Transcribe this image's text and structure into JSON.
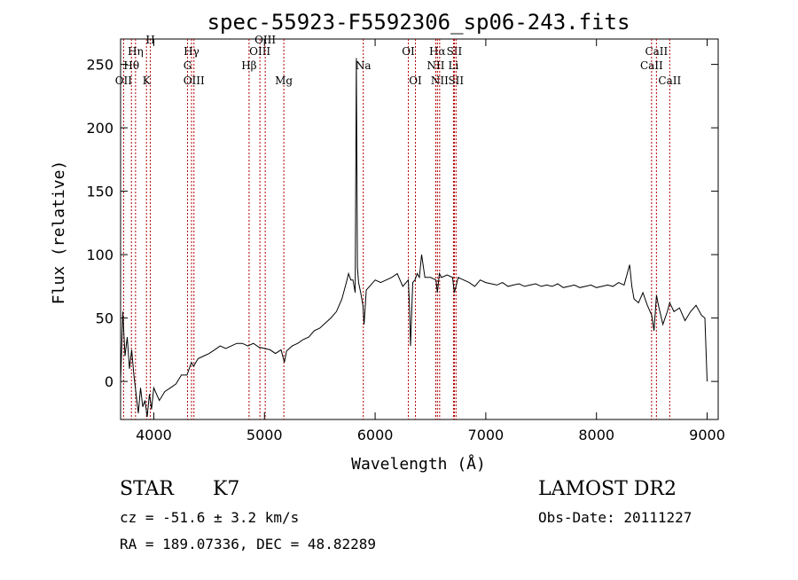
{
  "chart_data": {
    "type": "line",
    "title": "spec-55923-F5592306_sp06-243.fits",
    "xlabel": "Wavelength (Å)",
    "ylabel": "Flux (relative)",
    "xlim": [
      3700,
      9100
    ],
    "ylim": [
      -30,
      270
    ],
    "xticks": [
      4000,
      5000,
      6000,
      7000,
      8000,
      9000
    ],
    "yticks": [
      0,
      50,
      100,
      150,
      200,
      250
    ],
    "grid": false,
    "series": [
      {
        "color": "#000000",
        "x": [
          3700,
          3720,
          3740,
          3760,
          3780,
          3800,
          3820,
          3840,
          3860,
          3880,
          3900,
          3920,
          3940,
          3960,
          3980,
          4000,
          4050,
          4100,
          4150,
          4200,
          4250,
          4300,
          4340,
          4360,
          4400,
          4450,
          4500,
          4550,
          4600,
          4650,
          4700,
          4750,
          4800,
          4850,
          4900,
          4950,
          5000,
          5050,
          5100,
          5150,
          5180,
          5200,
          5250,
          5300,
          5350,
          5400,
          5450,
          5500,
          5550,
          5600,
          5650,
          5700,
          5740,
          5760,
          5780,
          5800,
          5820,
          5830,
          5840,
          5850,
          5870,
          5890,
          5900,
          5920,
          5950,
          6000,
          6050,
          6100,
          6150,
          6200,
          6250,
          6300,
          6310,
          6320,
          6340,
          6360,
          6380,
          6400,
          6420,
          6450,
          6500,
          6550,
          6563,
          6580,
          6600,
          6650,
          6700,
          6716,
          6731,
          6750,
          6800,
          6850,
          6900,
          6950,
          7000,
          7050,
          7100,
          7150,
          7200,
          7250,
          7300,
          7350,
          7400,
          7450,
          7500,
          7550,
          7600,
          7650,
          7700,
          7750,
          7800,
          7850,
          7900,
          7950,
          8000,
          8050,
          8100,
          8150,
          8200,
          8250,
          8300,
          8320,
          8340,
          8380,
          8420,
          8460,
          8500,
          8520,
          8542,
          8560,
          8600,
          8640,
          8662,
          8700,
          8750,
          8800,
          8850,
          8900,
          8950,
          8980,
          9000
        ],
        "y": [
          0,
          55,
          20,
          35,
          10,
          25,
          5,
          -10,
          -25,
          -5,
          -20,
          -15,
          -28,
          -10,
          -22,
          -5,
          -15,
          -8,
          -5,
          -2,
          5,
          5,
          15,
          12,
          18,
          20,
          22,
          25,
          28,
          26,
          28,
          30,
          30,
          28,
          30,
          27,
          26,
          25,
          22,
          25,
          15,
          24,
          28,
          30,
          33,
          35,
          40,
          42,
          46,
          50,
          55,
          65,
          78,
          85,
          80,
          80,
          70,
          255,
          90,
          78,
          70,
          60,
          45,
          72,
          75,
          80,
          78,
          80,
          82,
          85,
          75,
          80,
          60,
          28,
          78,
          80,
          85,
          82,
          100,
          82,
          82,
          80,
          70,
          85,
          82,
          84,
          82,
          70,
          75,
          82,
          80,
          78,
          75,
          80,
          78,
          77,
          76,
          78,
          75,
          76,
          77,
          75,
          76,
          77,
          75,
          76,
          75,
          77,
          74,
          75,
          76,
          74,
          75,
          76,
          74,
          75,
          76,
          75,
          78,
          76,
          92,
          75,
          65,
          62,
          70,
          60,
          52,
          40,
          68,
          60,
          45,
          55,
          62,
          55,
          58,
          48,
          55,
          60,
          52,
          50,
          0
        ]
      }
    ],
    "annotations": [
      {
        "label": "Hη",
        "x": 3835,
        "row": 1
      },
      {
        "label": "Hθ",
        "x": 3798,
        "row": 2
      },
      {
        "label": "OII",
        "x": 3727,
        "row": 3
      },
      {
        "label": "K",
        "x": 3934,
        "row": 3
      },
      {
        "label": "H",
        "x": 3969,
        "row": 0
      },
      {
        "label": "Hγ",
        "x": 4341,
        "row": 1
      },
      {
        "label": "G",
        "x": 4305,
        "row": 2
      },
      {
        "label": "OIII",
        "x": 4363,
        "row": 3
      },
      {
        "label": "OIII",
        "x": 4959,
        "row": 1
      },
      {
        "label": "Hβ",
        "x": 4861,
        "row": 2
      },
      {
        "label": "OIII",
        "x": 5007,
        "row": 0
      },
      {
        "label": "Mg",
        "x": 5175,
        "row": 3
      },
      {
        "label": "Na",
        "x": 5893,
        "row": 2
      },
      {
        "label": "OI",
        "x": 6300,
        "row": 1
      },
      {
        "label": "OI",
        "x": 6364,
        "row": 3
      },
      {
        "label": "Hα",
        "x": 6563,
        "row": 1
      },
      {
        "label": "SII",
        "x": 6716,
        "row": 1
      },
      {
        "label": "NII",
        "x": 6548,
        "row": 2
      },
      {
        "label": "Li",
        "x": 6708,
        "row": 2
      },
      {
        "label": "NII",
        "x": 6583,
        "row": 3
      },
      {
        "label": "SII",
        "x": 6731,
        "row": 3
      },
      {
        "label": "CaII",
        "x": 8542,
        "row": 1
      },
      {
        "label": "CaII",
        "x": 8498,
        "row": 2
      },
      {
        "label": "CaII",
        "x": 8662,
        "row": 3
      }
    ]
  },
  "info": {
    "class": "STAR",
    "subclass": "K7",
    "survey": "LAMOST DR2",
    "cz": "cz = -51.6 ± 3.2 km/s",
    "obsdate": "Obs-Date: 20111227",
    "coords": "RA = 189.07336, DEC =  48.82289"
  }
}
